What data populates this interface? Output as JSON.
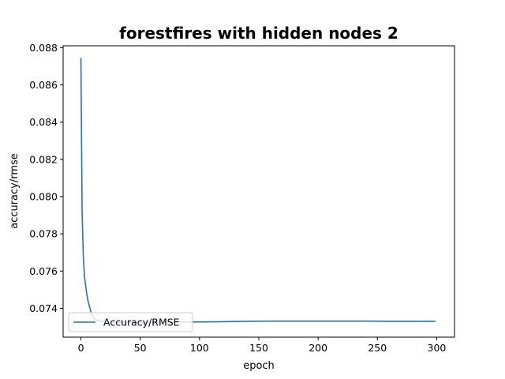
{
  "chart_data": {
    "type": "line",
    "title": "forestfires with hidden nodes 2",
    "xlabel": "epoch",
    "ylabel": "accuracy/rmse",
    "xlim": [
      -15,
      315
    ],
    "ylim": [
      0.07245,
      0.0881
    ],
    "x_ticks": [
      0,
      50,
      100,
      150,
      200,
      250,
      300
    ],
    "y_ticks": [
      0.074,
      0.076,
      0.078,
      0.08,
      0.082,
      0.084,
      0.086,
      0.088
    ],
    "y_tick_labels": [
      "0.074",
      "0.076",
      "0.078",
      "0.080",
      "0.082",
      "0.084",
      "0.086",
      "0.088"
    ],
    "grid": false,
    "legend_position": "lower-left",
    "series": [
      {
        "name": "Accuracy/RMSE",
        "color": "#1f77b4",
        "x": [
          0,
          1,
          2,
          3,
          4,
          5,
          6,
          7,
          8,
          9,
          10,
          12,
          15,
          20,
          25,
          30,
          40,
          50,
          60,
          80,
          100,
          120,
          140,
          160,
          180,
          200,
          220,
          240,
          260,
          280,
          299
        ],
        "y": [
          0.08745,
          0.0792,
          0.0768,
          0.07575,
          0.0752,
          0.07475,
          0.0744,
          0.07415,
          0.0739,
          0.07372,
          0.07358,
          0.0734,
          0.07333,
          0.07328,
          0.07326,
          0.07325,
          0.07325,
          0.07325,
          0.07325,
          0.07326,
          0.07327,
          0.07328,
          0.0733,
          0.07331,
          0.07331,
          0.07331,
          0.07331,
          0.07331,
          0.0733,
          0.0733,
          0.0733
        ]
      }
    ]
  }
}
